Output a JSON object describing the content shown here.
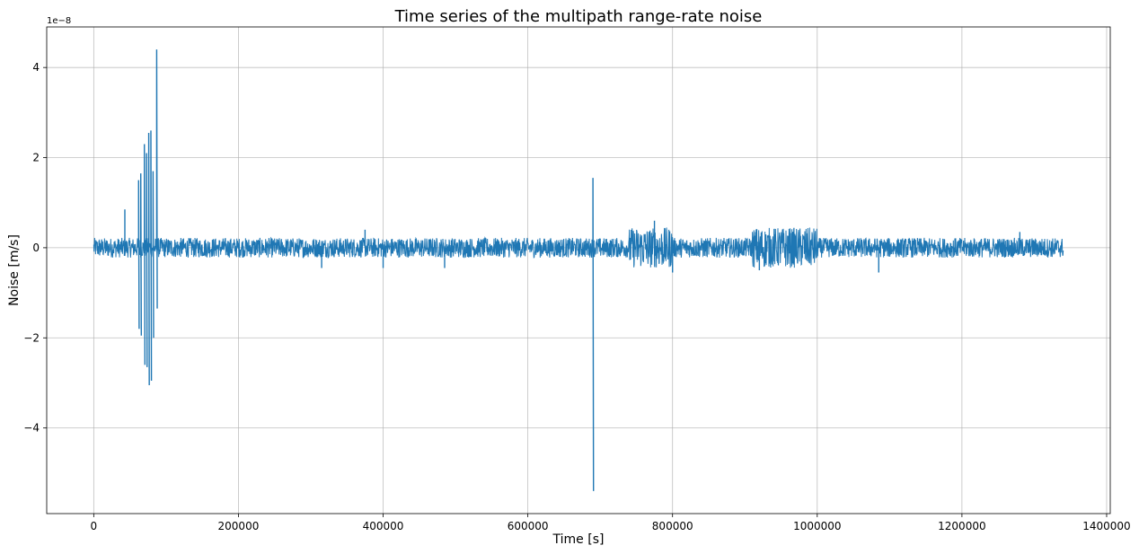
{
  "chart_data": {
    "type": "line",
    "title": "Time series of the multipath range-rate noise",
    "xlabel": "Time [s]",
    "ylabel": "Noise [m/s]",
    "offset_text": "1e−8",
    "xlim": [
      -65000,
      1405000
    ],
    "ylim": [
      -5.9,
      4.9
    ],
    "y_scale_factor": 1e-08,
    "grid": true,
    "x_ticks": [
      0,
      200000,
      400000,
      600000,
      800000,
      1000000,
      1200000,
      1400000
    ],
    "x_tick_labels": [
      "0",
      "200000",
      "400000",
      "600000",
      "800000",
      "1000000",
      "1200000",
      "1400000"
    ],
    "y_ticks": [
      -4,
      -2,
      0,
      2,
      4
    ],
    "y_tick_labels": [
      "−4",
      "−2",
      "0",
      "2",
      "4"
    ],
    "series": [
      {
        "color": "#1f77b4",
        "x_range": [
          0,
          1340000
        ],
        "base_amplitude": 0.22,
        "regions": [
          {
            "x": [
              740000,
              800000
            ],
            "amplitude": 0.45
          },
          {
            "x": [
              910000,
              1000000
            ],
            "amplitude": 0.45
          }
        ],
        "spikes": [
          {
            "x": 43000,
            "values": [
              0.85
            ]
          },
          {
            "x": 62000,
            "values": [
              1.5,
              -1.8
            ]
          },
          {
            "x": 65000,
            "values": [
              1.65,
              -1.95
            ]
          },
          {
            "x": 70000,
            "values": [
              2.3,
              -2.6
            ]
          },
          {
            "x": 73000,
            "values": [
              2.1,
              -2.65
            ]
          },
          {
            "x": 76000,
            "values": [
              2.55,
              -3.05
            ]
          },
          {
            "x": 79000,
            "values": [
              2.6,
              -2.95
            ]
          },
          {
            "x": 82000,
            "values": [
              1.7,
              -2.0
            ]
          },
          {
            "x": 87000,
            "values": [
              4.4,
              -1.35
            ]
          },
          {
            "x": 315000,
            "values": [
              -0.45
            ]
          },
          {
            "x": 375000,
            "values": [
              0.4
            ]
          },
          {
            "x": 400000,
            "values": [
              -0.45
            ]
          },
          {
            "x": 485000,
            "values": [
              -0.45
            ]
          },
          {
            "x": 690000,
            "values": [
              1.55,
              -5.4
            ]
          },
          {
            "x": 775000,
            "values": [
              0.6
            ]
          },
          {
            "x": 800000,
            "values": [
              -0.55
            ]
          },
          {
            "x": 920000,
            "values": [
              -0.5
            ]
          },
          {
            "x": 1085000,
            "values": [
              -0.55
            ]
          },
          {
            "x": 1280000,
            "values": [
              0.35
            ]
          }
        ]
      }
    ]
  }
}
